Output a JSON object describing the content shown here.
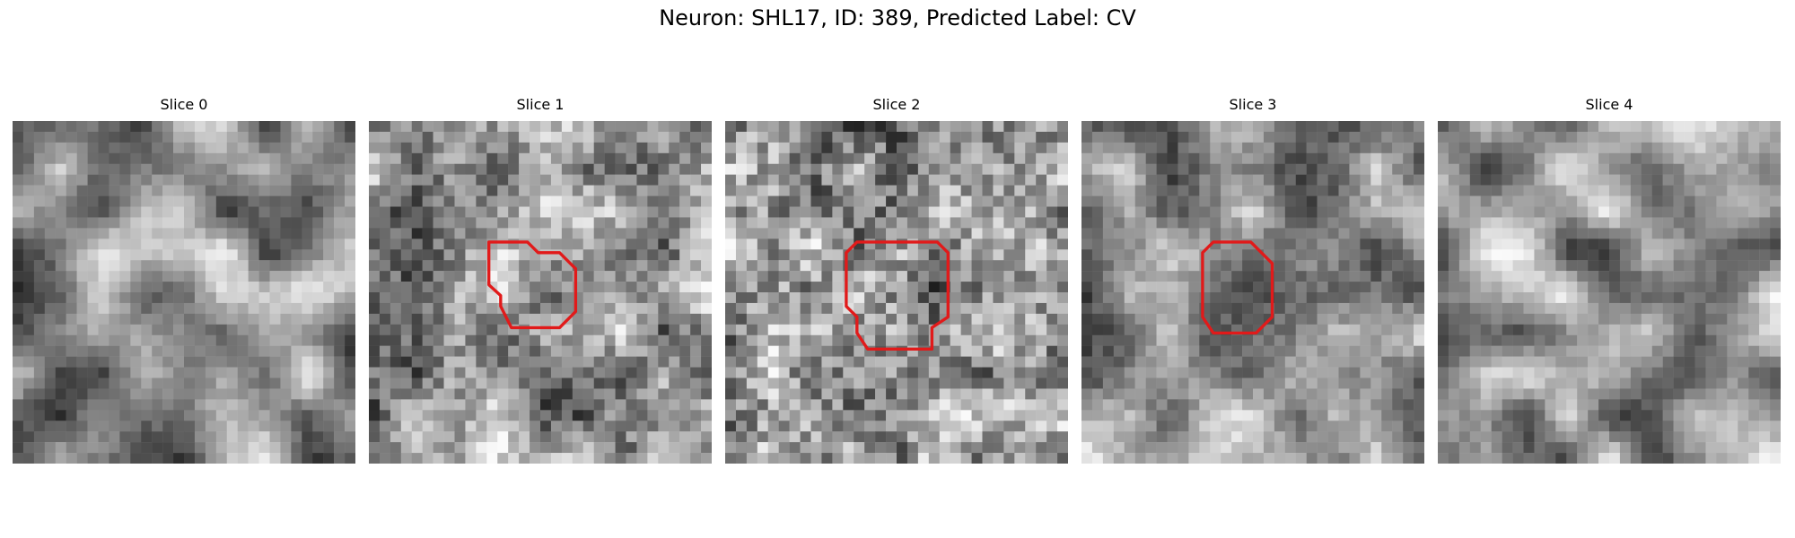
{
  "figure": {
    "title": "Neuron: SHL17, ID: 389, Predicted Label: CV",
    "contour_color": "#e11a1a"
  },
  "panels": [
    {
      "title": "Slice 0",
      "seed": 11,
      "has_contour": false
    },
    {
      "title": "Slice 1",
      "seed": 23,
      "has_contour": true
    },
    {
      "title": "Slice 2",
      "seed": 37,
      "has_contour": true
    },
    {
      "title": "Slice 3",
      "seed": 53,
      "has_contour": true
    },
    {
      "title": "Slice 4",
      "seed": 71,
      "has_contour": false
    }
  ]
}
